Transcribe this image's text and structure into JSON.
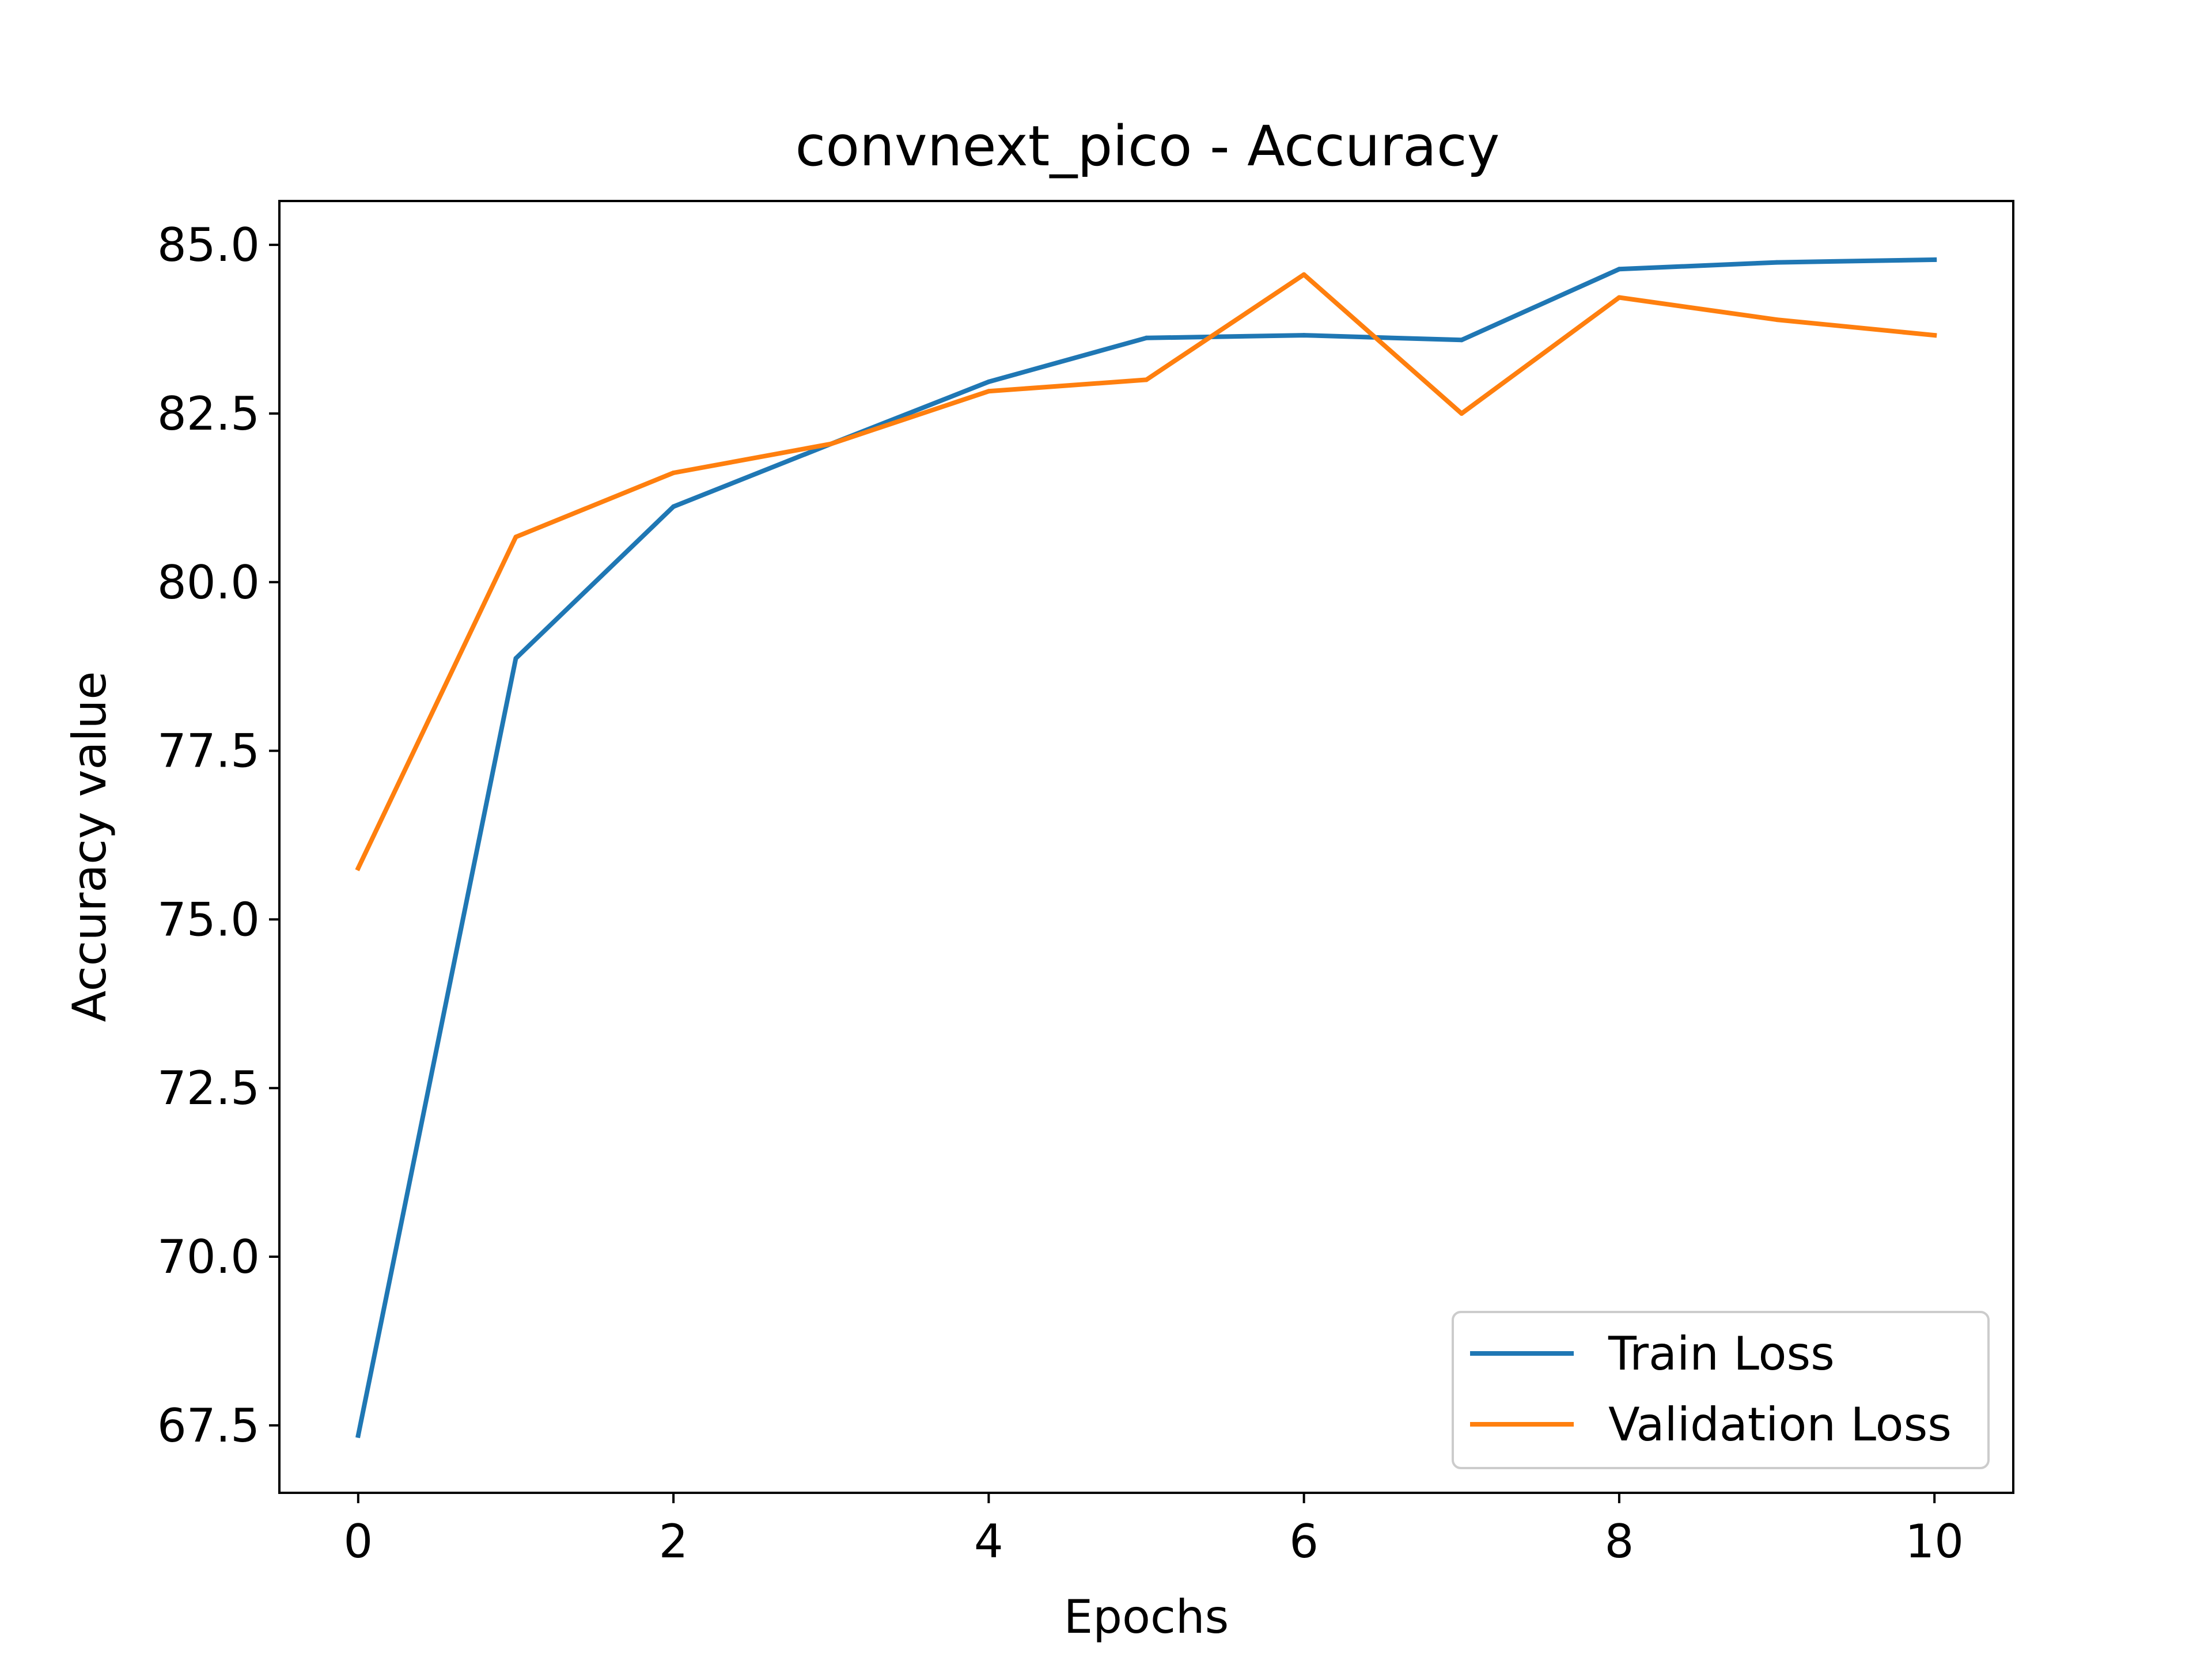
{
  "chart_data": {
    "type": "line",
    "title": "convnext_pico - Accuracy",
    "xlabel": "Epochs",
    "ylabel": "Accuracy value",
    "xlim": [
      -0.5,
      10.5
    ],
    "ylim": [
      66.5,
      85.65
    ],
    "x_ticks": [
      0,
      2,
      4,
      6,
      8,
      10
    ],
    "y_ticks": [
      67.5,
      70.0,
      72.5,
      75.0,
      77.5,
      80.0,
      82.5,
      85.0
    ],
    "grid": false,
    "legend_position": "lower right",
    "x": [
      0,
      1,
      2,
      3,
      4,
      5,
      6,
      7,
      8,
      9,
      10
    ],
    "series": [
      {
        "name": "Train Loss",
        "color": "#1f77b4",
        "values": [
          67.35,
          78.87,
          81.12,
          82.05,
          82.97,
          83.62,
          83.66,
          83.59,
          84.64,
          84.74,
          84.78
        ]
      },
      {
        "name": "Validation Loss",
        "color": "#ff7f0e",
        "values": [
          75.76,
          80.67,
          81.62,
          82.05,
          82.83,
          83.0,
          84.56,
          82.5,
          84.22,
          83.89,
          83.66
        ]
      }
    ]
  }
}
